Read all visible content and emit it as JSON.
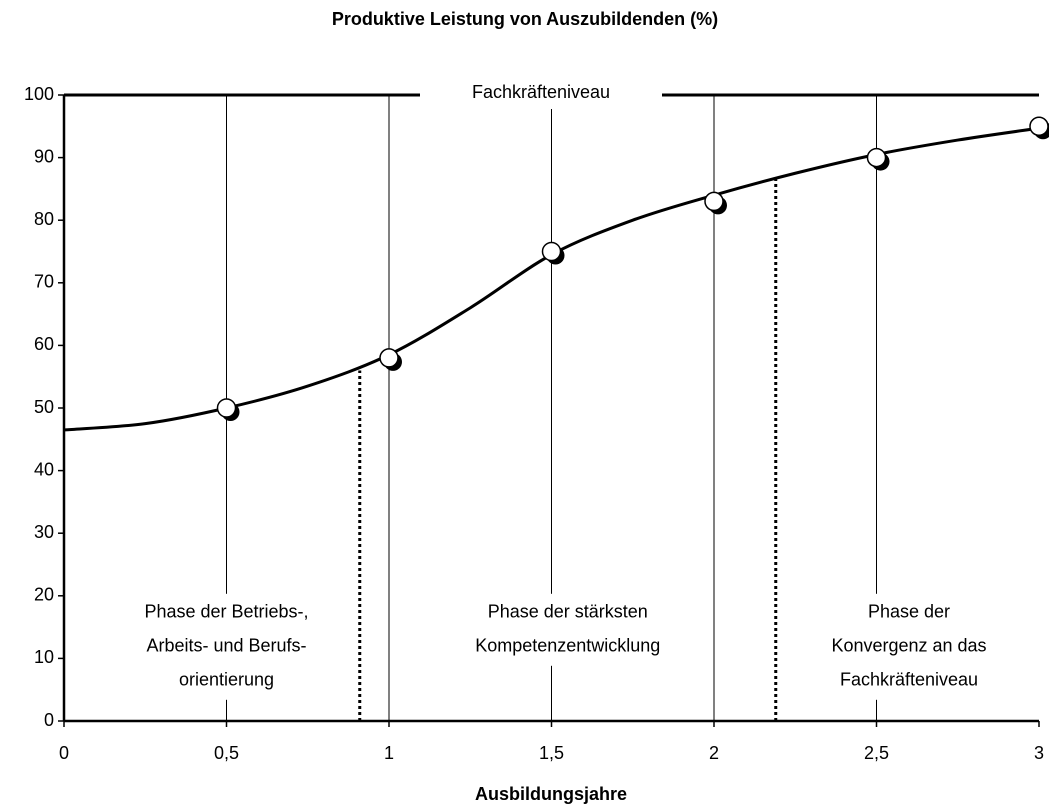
{
  "chart_data": {
    "type": "scatter",
    "title": "Produktive Leistung von Auszubildenden (%)",
    "x_label": "Ausbildungsjahre",
    "x": [
      0.5,
      1,
      1.5,
      2,
      2.5,
      3
    ],
    "values": [
      50,
      58,
      75,
      83,
      90,
      95
    ],
    "marker_color": "#ffffff",
    "curve": {
      "x": [
        0,
        0.25,
        0.5,
        0.75,
        1,
        1.25,
        1.5,
        1.75,
        2,
        2.25,
        2.5,
        2.75,
        3
      ],
      "values": [
        46.5,
        47.5,
        50,
        53.5,
        58.5,
        66,
        74.5,
        80,
        84,
        87.5,
        90.5,
        92.8,
        94.7
      ],
      "color": "#000000"
    },
    "xlim": [
      0,
      3
    ],
    "ylim": [
      0,
      100
    ],
    "xticks": [
      0,
      {
        "value": 0.5,
        "label": "0,5"
      },
      1,
      {
        "value": 1.5,
        "label": "1,5"
      },
      2,
      {
        "value": 2.5,
        "label": "2,5"
      },
      3
    ],
    "yticks": [
      0,
      10,
      20,
      30,
      40,
      50,
      60,
      70,
      80,
      90,
      100
    ],
    "grid": true,
    "top_label": "Fachkräfteniveau",
    "dividers": [
      {
        "x": 0.91,
        "y": 56
      },
      {
        "x": 2.19,
        "y": 86.5
      }
    ],
    "phases": [
      {
        "x": 0.5,
        "lines": [
          "Phase der Betriebs-,",
          "Arbeits- und Berufs-",
          "orientierung"
        ]
      },
      {
        "x": 1.55,
        "lines": [
          "Phase der stärksten",
          "Kompetenzentwicklung"
        ]
      },
      {
        "x": 2.6,
        "lines": [
          "Phase der",
          "Konvergenz an das",
          "Fachkräfteniveau"
        ]
      }
    ]
  }
}
